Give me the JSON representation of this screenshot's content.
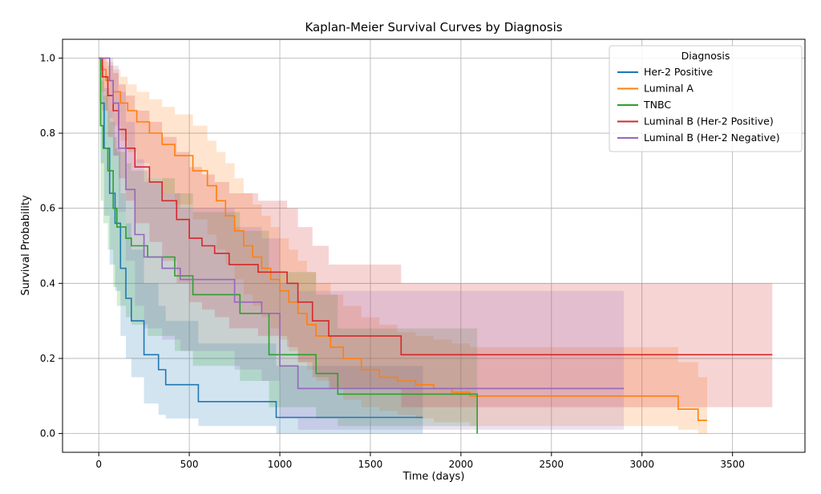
{
  "chart_data": {
    "type": "line",
    "title": "Kaplan-Meier Survival Curves by Diagnosis",
    "xlabel": "Time (days)",
    "ylabel": "Survival Probability",
    "xlim": [
      -200,
      3900
    ],
    "ylim": [
      -0.05,
      1.05
    ],
    "xticks": [
      0,
      500,
      1000,
      1500,
      2000,
      2500,
      3000,
      3500
    ],
    "yticks": [
      0.0,
      0.2,
      0.4,
      0.6,
      0.8,
      1.0
    ],
    "xtick_labels": [
      "0",
      "500",
      "1000",
      "1500",
      "2000",
      "2500",
      "3000",
      "3500"
    ],
    "ytick_labels": [
      "0.0",
      "0.2",
      "0.4",
      "0.6",
      "0.8",
      "1.0"
    ],
    "grid": true,
    "legend_title": "Diagnosis",
    "legend_position": "top-right",
    "series": [
      {
        "name": "Her-2 Positive",
        "color": "#1f77b4",
        "t": [
          0,
          10,
          30,
          60,
          90,
          120,
          150,
          180,
          250,
          330,
          370,
          550,
          980,
          1790
        ],
        "s": [
          1.0,
          0.88,
          0.76,
          0.64,
          0.56,
          0.44,
          0.36,
          0.3,
          0.21,
          0.17,
          0.13,
          0.085,
          0.043,
          0.043
        ],
        "lo": [
          1.0,
          0.72,
          0.58,
          0.45,
          0.38,
          0.26,
          0.2,
          0.15,
          0.08,
          0.05,
          0.04,
          0.02,
          0.0,
          0.0
        ],
        "hi": [
          1.0,
          0.98,
          0.92,
          0.83,
          0.76,
          0.64,
          0.56,
          0.49,
          0.4,
          0.34,
          0.3,
          0.24,
          0.18,
          0.18
        ]
      },
      {
        "name": "Luminal A",
        "color": "#ff7f0e",
        "t": [
          0,
          15,
          40,
          80,
          120,
          160,
          210,
          280,
          350,
          420,
          520,
          600,
          650,
          700,
          750,
          800,
          850,
          900,
          950,
          1000,
          1050,
          1100,
          1150,
          1200,
          1280,
          1350,
          1450,
          1550,
          1650,
          1750,
          1850,
          1950,
          2050,
          3200,
          3310,
          3360
        ],
        "s": [
          1.0,
          0.97,
          0.94,
          0.91,
          0.88,
          0.86,
          0.83,
          0.8,
          0.77,
          0.74,
          0.7,
          0.66,
          0.62,
          0.58,
          0.54,
          0.5,
          0.47,
          0.44,
          0.41,
          0.38,
          0.35,
          0.32,
          0.29,
          0.26,
          0.23,
          0.2,
          0.17,
          0.15,
          0.14,
          0.13,
          0.12,
          0.11,
          0.1,
          0.065,
          0.035,
          0.035
        ],
        "lo": [
          1.0,
          0.91,
          0.86,
          0.82,
          0.78,
          0.75,
          0.72,
          0.68,
          0.64,
          0.61,
          0.57,
          0.53,
          0.49,
          0.45,
          0.41,
          0.37,
          0.34,
          0.31,
          0.28,
          0.25,
          0.22,
          0.19,
          0.17,
          0.14,
          0.12,
          0.09,
          0.07,
          0.06,
          0.05,
          0.04,
          0.03,
          0.03,
          0.02,
          0.01,
          0.0,
          0.0
        ],
        "hi": [
          1.0,
          1.0,
          0.99,
          0.97,
          0.95,
          0.93,
          0.91,
          0.89,
          0.87,
          0.85,
          0.82,
          0.78,
          0.75,
          0.72,
          0.68,
          0.64,
          0.61,
          0.58,
          0.55,
          0.52,
          0.49,
          0.46,
          0.43,
          0.4,
          0.37,
          0.34,
          0.31,
          0.29,
          0.27,
          0.26,
          0.25,
          0.24,
          0.23,
          0.19,
          0.15,
          0.15
        ]
      },
      {
        "name": "TNBC",
        "color": "#2ca02c",
        "t": [
          0,
          10,
          25,
          50,
          80,
          100,
          150,
          180,
          270,
          420,
          520,
          780,
          940,
          1070,
          1200,
          1320,
          2090
        ],
        "s": [
          1.0,
          0.82,
          0.76,
          0.7,
          0.6,
          0.55,
          0.52,
          0.5,
          0.47,
          0.42,
          0.37,
          0.32,
          0.21,
          0.21,
          0.16,
          0.105,
          0.0
        ],
        "lo": [
          1.0,
          0.62,
          0.56,
          0.49,
          0.39,
          0.34,
          0.31,
          0.29,
          0.26,
          0.22,
          0.18,
          0.14,
          0.07,
          0.07,
          0.04,
          0.02,
          0.0
        ],
        "hi": [
          1.0,
          0.94,
          0.9,
          0.86,
          0.79,
          0.75,
          0.72,
          0.7,
          0.68,
          0.64,
          0.59,
          0.54,
          0.43,
          0.43,
          0.37,
          0.28,
          0.28
        ]
      },
      {
        "name": "Luminal B  (Her-2 Positive)",
        "color": "#d62728",
        "t": [
          0,
          20,
          50,
          80,
          110,
          150,
          200,
          280,
          350,
          430,
          500,
          570,
          640,
          720,
          880,
          1040,
          1100,
          1180,
          1270,
          1670,
          3720
        ],
        "s": [
          1.0,
          0.95,
          0.9,
          0.86,
          0.81,
          0.76,
          0.71,
          0.67,
          0.62,
          0.57,
          0.52,
          0.5,
          0.48,
          0.45,
          0.43,
          0.4,
          0.35,
          0.3,
          0.26,
          0.21,
          0.21
        ],
        "lo": [
          1.0,
          0.86,
          0.79,
          0.74,
          0.68,
          0.62,
          0.56,
          0.51,
          0.46,
          0.4,
          0.35,
          0.33,
          0.31,
          0.28,
          0.26,
          0.23,
          0.19,
          0.15,
          0.12,
          0.07,
          0.07
        ],
        "hi": [
          1.0,
          1.0,
          0.98,
          0.96,
          0.93,
          0.9,
          0.86,
          0.83,
          0.79,
          0.75,
          0.71,
          0.69,
          0.67,
          0.64,
          0.62,
          0.6,
          0.55,
          0.5,
          0.45,
          0.4,
          0.4
        ]
      },
      {
        "name": "Luminal B (Her-2 Negative)",
        "color": "#9467bd",
        "t": [
          0,
          60,
          80,
          110,
          150,
          200,
          250,
          350,
          450,
          750,
          900,
          1000,
          1100,
          2900
        ],
        "s": [
          1.0,
          0.94,
          0.88,
          0.76,
          0.65,
          0.53,
          0.47,
          0.44,
          0.41,
          0.35,
          0.32,
          0.18,
          0.12,
          0.12
        ],
        "lo": [
          1.0,
          0.84,
          0.74,
          0.59,
          0.46,
          0.34,
          0.28,
          0.25,
          0.22,
          0.17,
          0.14,
          0.04,
          0.01,
          0.01
        ],
        "hi": [
          1.0,
          1.0,
          0.98,
          0.91,
          0.83,
          0.73,
          0.67,
          0.64,
          0.6,
          0.55,
          0.52,
          0.4,
          0.38,
          0.38
        ]
      }
    ]
  }
}
